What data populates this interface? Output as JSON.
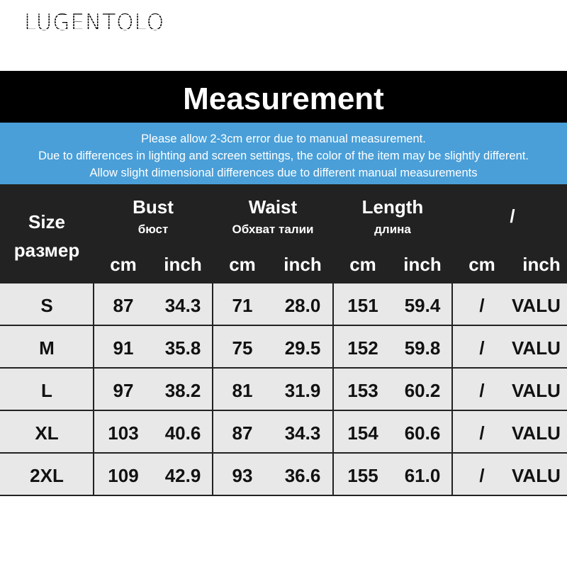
{
  "brand": "LUGENTOLO",
  "title": "Measurement",
  "notes": [
    "Please allow 2-3cm error due to manual measurement.",
    "Due to differences in lighting and screen settings, the color of the item may be slightly different.",
    "Allow slight dimensional differences due to different manual measurements"
  ],
  "header": {
    "size": "Size",
    "size_ru": "размер",
    "bust": "Bust",
    "bust_ru": "бюст",
    "waist": "Waist",
    "waist_ru": "Обхват талии",
    "length": "Length",
    "length_ru": "длина",
    "extra": "/",
    "cm": "cm",
    "inch": "inch"
  },
  "rows": [
    [
      "S",
      "87",
      "34.3",
      "71",
      "28.0",
      "151",
      "59.4",
      "/",
      "VALU"
    ],
    [
      "M",
      "91",
      "35.8",
      "75",
      "29.5",
      "152",
      "59.8",
      "/",
      "VALU"
    ],
    [
      "L",
      "97",
      "38.2",
      "81",
      "31.9",
      "153",
      "60.2",
      "/",
      "VALU"
    ],
    [
      "XL",
      "103",
      "40.6",
      "87",
      "34.3",
      "154",
      "60.6",
      "/",
      "VALU"
    ],
    [
      "2XL",
      "109",
      "42.9",
      "93",
      "36.6",
      "155",
      "61.0",
      "/",
      "VALU"
    ]
  ]
}
